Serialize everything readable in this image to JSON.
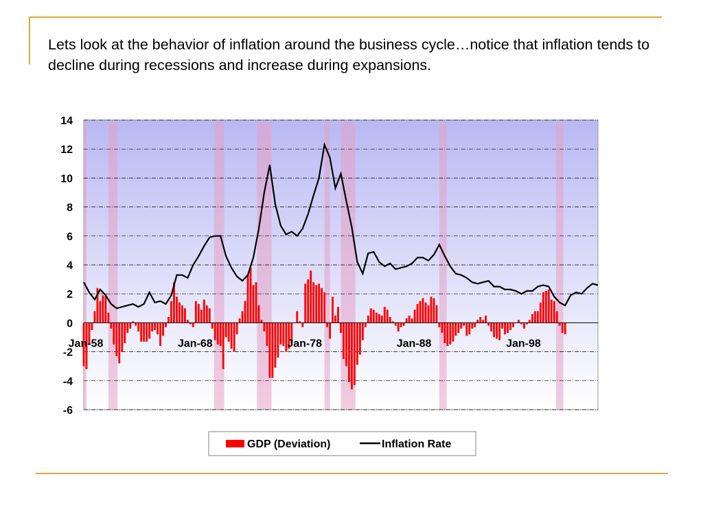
{
  "slide": {
    "body_text": "Lets look at the behavior of inflation around the business cycle…notice that inflation tends to decline during recessions and increase during expansions."
  },
  "colors": {
    "rule": "#e0a832",
    "recession_band": "#e6a0c4",
    "gdp_bar": "#ff0000",
    "inflation_line": "#000000",
    "plot_bg_top": "#b9b9f3",
    "plot_bg_bottom": "#ffffff"
  },
  "chart_data": {
    "type": "bar",
    "ylim": [
      -6,
      14
    ],
    "y_ticks": [
      "14",
      "12",
      "10",
      "8",
      "6",
      "4",
      "2",
      "0",
      "-2",
      "-4",
      "-6"
    ],
    "x_range": [
      "Jan-58",
      "Jan-02"
    ],
    "x_tick_labels": [
      "Jan-58",
      "Jan-68",
      "Jan-78",
      "Jan-88",
      "Jan-98"
    ],
    "grid": "horizontal dash-dot",
    "legend_position": "bottom",
    "legend": [
      "GDP (Deviation)",
      "Inflation Rate"
    ],
    "recessions": [
      [
        "Aug-57",
        "Apr-58"
      ],
      [
        "Apr-60",
        "Feb-61"
      ],
      [
        "Dec-69",
        "Nov-70"
      ],
      [
        "Nov-73",
        "Mar-75"
      ],
      [
        "Jan-80",
        "Jul-80"
      ],
      [
        "Jul-81",
        "Nov-82"
      ],
      [
        "Jul-90",
        "Mar-91"
      ],
      [
        "Mar-01",
        "Nov-01"
      ]
    ],
    "series": [
      {
        "name": "GDP (Deviation)",
        "type": "bar",
        "points": [
          [
            "Jan-58",
            -3.0
          ],
          [
            "Apr-58",
            -3.2
          ],
          [
            "Jul-58",
            -1.5
          ],
          [
            "Oct-58",
            -0.5
          ],
          [
            "Jan-59",
            0.8
          ],
          [
            "Apr-59",
            2.4
          ],
          [
            "Jul-59",
            1.5
          ],
          [
            "Oct-59",
            1.9
          ],
          [
            "Jan-60",
            2.0
          ],
          [
            "Apr-60",
            0.7
          ],
          [
            "Jul-60",
            -0.4
          ],
          [
            "Oct-60",
            -1.5
          ],
          [
            "Jan-61",
            -2.3
          ],
          [
            "Apr-61",
            -2.8
          ],
          [
            "Jul-61",
            -2.0
          ],
          [
            "Oct-61",
            -1.4
          ],
          [
            "Jan-62",
            -0.7
          ],
          [
            "Apr-62",
            -0.4
          ],
          [
            "Jul-62",
            0.1
          ],
          [
            "Oct-62",
            -0.2
          ],
          [
            "Jan-63",
            -0.6
          ],
          [
            "Apr-63",
            -1.3
          ],
          [
            "Jul-63",
            -1.3
          ],
          [
            "Oct-63",
            -1.3
          ],
          [
            "Jan-64",
            -1.1
          ],
          [
            "Apr-64",
            -0.6
          ],
          [
            "Jul-64",
            -0.5
          ],
          [
            "Oct-64",
            -0.8
          ],
          [
            "Jan-65",
            -1.6
          ],
          [
            "Apr-65",
            -0.9
          ],
          [
            "Jul-65",
            -0.3
          ],
          [
            "Oct-65",
            0.4
          ],
          [
            "Jan-66",
            1.5
          ],
          [
            "Apr-66",
            2.8
          ],
          [
            "Jul-66",
            1.8
          ],
          [
            "Oct-66",
            1.4
          ],
          [
            "Jan-67",
            1.2
          ],
          [
            "Apr-67",
            1.0
          ],
          [
            "Jul-67",
            0.2
          ],
          [
            "Oct-67",
            -0.1
          ],
          [
            "Jan-68",
            -0.3
          ],
          [
            "Apr-68",
            1.5
          ],
          [
            "Jul-68",
            1.3
          ],
          [
            "Oct-68",
            0.9
          ],
          [
            "Jan-69",
            1.6
          ],
          [
            "Apr-69",
            1.2
          ],
          [
            "Jul-69",
            1.0
          ],
          [
            "Oct-69",
            -0.4
          ],
          [
            "Jan-70",
            -1.2
          ],
          [
            "Apr-70",
            -1.5
          ],
          [
            "Jul-70",
            -1.6
          ],
          [
            "Oct-70",
            -3.2
          ],
          [
            "Jan-71",
            -1.0
          ],
          [
            "Apr-71",
            -1.3
          ],
          [
            "Jul-71",
            -1.8
          ],
          [
            "Oct-71",
            -2.0
          ],
          [
            "Jan-72",
            -0.8
          ],
          [
            "Apr-72",
            0.3
          ],
          [
            "Jul-72",
            0.8
          ],
          [
            "Oct-72",
            1.5
          ],
          [
            "Jan-73",
            3.3
          ],
          [
            "Apr-73",
            3.8
          ],
          [
            "Jul-73",
            2.6
          ],
          [
            "Oct-73",
            2.8
          ],
          [
            "Jan-74",
            1.2
          ],
          [
            "Apr-74",
            0.2
          ],
          [
            "Jul-74",
            -0.6
          ],
          [
            "Oct-74",
            -1.6
          ],
          [
            "Jan-75",
            -3.8
          ],
          [
            "Apr-75",
            -3.8
          ],
          [
            "Jul-75",
            -3.1
          ],
          [
            "Oct-75",
            -2.4
          ],
          [
            "Jan-76",
            -1.5
          ],
          [
            "Apr-76",
            -1.6
          ],
          [
            "Jul-76",
            -2.0
          ],
          [
            "Oct-76",
            -1.8
          ],
          [
            "Jan-77",
            -1.4
          ],
          [
            "Apr-77",
            0.0
          ],
          [
            "Jul-77",
            0.8
          ],
          [
            "Oct-77",
            0.1
          ],
          [
            "Jan-78",
            -0.3
          ],
          [
            "Apr-78",
            2.7
          ],
          [
            "Jul-78",
            3.0
          ],
          [
            "Oct-78",
            3.6
          ],
          [
            "Jan-79",
            2.8
          ],
          [
            "Apr-79",
            2.6
          ],
          [
            "Jul-79",
            2.7
          ],
          [
            "Oct-79",
            2.4
          ],
          [
            "Jan-80",
            2.1
          ],
          [
            "Apr-80",
            -0.3
          ],
          [
            "Jul-80",
            -1.1
          ],
          [
            "Oct-80",
            1.8
          ],
          [
            "Jan-81",
            0.5
          ],
          [
            "Apr-81",
            1.1
          ],
          [
            "Jul-81",
            -0.7
          ],
          [
            "Oct-81",
            -2.5
          ],
          [
            "Jan-82",
            -3.0
          ],
          [
            "Apr-82",
            -4.1
          ],
          [
            "Jul-82",
            -4.6
          ],
          [
            "Oct-82",
            -4.3
          ],
          [
            "Jan-83",
            -2.9
          ],
          [
            "Apr-83",
            -2.2
          ],
          [
            "Jul-83",
            -1.2
          ],
          [
            "Oct-83",
            -0.3
          ],
          [
            "Jan-84",
            0.5
          ],
          [
            "Apr-84",
            1.0
          ],
          [
            "Jul-84",
            0.9
          ],
          [
            "Oct-84",
            0.7
          ],
          [
            "Jan-85",
            0.6
          ],
          [
            "Apr-85",
            0.5
          ],
          [
            "Jul-85",
            1.1
          ],
          [
            "Oct-85",
            0.9
          ],
          [
            "Jan-86",
            0.4
          ],
          [
            "Apr-86",
            0.1
          ],
          [
            "Jul-86",
            -0.2
          ],
          [
            "Oct-86",
            -0.6
          ],
          [
            "Jan-87",
            -0.3
          ],
          [
            "Apr-87",
            -0.2
          ],
          [
            "Jul-87",
            0.3
          ],
          [
            "Oct-87",
            0.5
          ],
          [
            "Jan-88",
            0.3
          ],
          [
            "Apr-88",
            0.9
          ],
          [
            "Jul-88",
            1.3
          ],
          [
            "Oct-88",
            1.5
          ],
          [
            "Jan-89",
            1.7
          ],
          [
            "Apr-89",
            1.4
          ],
          [
            "Jul-89",
            1.2
          ],
          [
            "Oct-89",
            1.8
          ],
          [
            "Jan-90",
            1.7
          ],
          [
            "Apr-90",
            1.2
          ],
          [
            "Jul-90",
            -0.3
          ],
          [
            "Oct-90",
            -0.7
          ],
          [
            "Jan-91",
            -1.4
          ],
          [
            "Apr-91",
            -1.6
          ],
          [
            "Jul-91",
            -1.5
          ],
          [
            "Oct-91",
            -1.3
          ],
          [
            "Jan-92",
            -0.9
          ],
          [
            "Apr-92",
            -0.7
          ],
          [
            "Jul-92",
            -0.4
          ],
          [
            "Oct-92",
            -0.2
          ],
          [
            "Jan-93",
            -0.9
          ],
          [
            "Apr-93",
            -0.8
          ],
          [
            "Jul-93",
            -0.4
          ],
          [
            "Oct-93",
            -0.3
          ],
          [
            "Jan-94",
            0.2
          ],
          [
            "Apr-94",
            0.4
          ],
          [
            "Jul-94",
            0.2
          ],
          [
            "Oct-94",
            0.5
          ],
          [
            "Jan-95",
            -0.2
          ],
          [
            "Apr-95",
            -0.6
          ],
          [
            "Jul-95",
            -1.0
          ],
          [
            "Oct-95",
            -1.1
          ],
          [
            "Jan-96",
            -1.2
          ],
          [
            "Apr-96",
            -0.4
          ],
          [
            "Jul-96",
            -0.8
          ],
          [
            "Oct-96",
            -0.7
          ],
          [
            "Jan-97",
            -0.5
          ],
          [
            "Apr-97",
            -0.3
          ],
          [
            "Jul-97",
            0.0
          ],
          [
            "Oct-97",
            0.2
          ],
          [
            "Jan-98",
            -0.1
          ],
          [
            "Apr-98",
            -0.4
          ],
          [
            "Jul-98",
            -0.1
          ],
          [
            "Oct-98",
            0.2
          ],
          [
            "Jan-99",
            0.6
          ],
          [
            "Apr-99",
            0.8
          ],
          [
            "Jul-99",
            0.8
          ],
          [
            "Oct-99",
            1.4
          ],
          [
            "Jan-00",
            2.1
          ],
          [
            "Apr-00",
            2.2
          ],
          [
            "Jul-00",
            2.3
          ],
          [
            "Oct-00",
            1.6
          ],
          [
            "Jan-01",
            1.5
          ],
          [
            "Apr-01",
            0.8
          ],
          [
            "Jul-01",
            -0.2
          ],
          [
            "Oct-01",
            -0.7
          ],
          [
            "Jan-02",
            -0.8
          ]
        ]
      },
      {
        "name": "Inflation Rate",
        "type": "line",
        "points": [
          [
            "Jan-58",
            2.8
          ],
          [
            "Jul-58",
            2.1
          ],
          [
            "Jan-59",
            1.6
          ],
          [
            "Jul-59",
            2.3
          ],
          [
            "Jan-60",
            1.9
          ],
          [
            "Jul-60",
            1.3
          ],
          [
            "Jan-61",
            1.0
          ],
          [
            "Jul-61",
            1.1
          ],
          [
            "Jan-62",
            1.2
          ],
          [
            "Jul-62",
            1.3
          ],
          [
            "Jan-63",
            1.1
          ],
          [
            "Jul-63",
            1.3
          ],
          [
            "Jan-64",
            2.1
          ],
          [
            "Jul-64",
            1.4
          ],
          [
            "Jan-65",
            1.5
          ],
          [
            "Jul-65",
            1.3
          ],
          [
            "Jan-66",
            1.9
          ],
          [
            "Jul-66",
            3.3
          ],
          [
            "Jan-67",
            3.3
          ],
          [
            "Jul-67",
            3.1
          ],
          [
            "Jan-68",
            4.0
          ],
          [
            "Jul-68",
            4.6
          ],
          [
            "Jan-69",
            5.3
          ],
          [
            "Jul-69",
            5.9
          ],
          [
            "Jan-70",
            6.0
          ],
          [
            "Jul-70",
            6.0
          ],
          [
            "Jan-71",
            4.6
          ],
          [
            "Jul-71",
            3.8
          ],
          [
            "Jan-72",
            3.2
          ],
          [
            "Jul-72",
            2.9
          ],
          [
            "Jan-73",
            3.3
          ],
          [
            "Jul-73",
            4.5
          ],
          [
            "Jan-74",
            6.5
          ],
          [
            "Jul-74",
            9.0
          ],
          [
            "Jan-75",
            10.9
          ],
          [
            "Jul-75",
            8.2
          ],
          [
            "Jan-76",
            6.7
          ],
          [
            "Jul-76",
            6.1
          ],
          [
            "Jan-77",
            6.3
          ],
          [
            "Jul-77",
            6.0
          ],
          [
            "Jan-78",
            6.5
          ],
          [
            "Jul-78",
            7.5
          ],
          [
            "Jan-79",
            8.8
          ],
          [
            "Jul-79",
            10.0
          ],
          [
            "Jan-80",
            12.3
          ],
          [
            "Jul-80",
            11.4
          ],
          [
            "Jan-81",
            9.3
          ],
          [
            "Jul-81",
            10.3
          ],
          [
            "Jan-82",
            8.4
          ],
          [
            "Jul-82",
            6.6
          ],
          [
            "Jan-83",
            4.2
          ],
          [
            "Jul-83",
            3.4
          ],
          [
            "Jan-84",
            4.8
          ],
          [
            "Jul-84",
            4.9
          ],
          [
            "Jan-85",
            4.2
          ],
          [
            "Jul-85",
            3.9
          ],
          [
            "Jan-86",
            4.1
          ],
          [
            "Jul-86",
            3.7
          ],
          [
            "Jan-87",
            3.8
          ],
          [
            "Jul-87",
            3.9
          ],
          [
            "Jan-88",
            4.1
          ],
          [
            "Jul-88",
            4.5
          ],
          [
            "Jan-89",
            4.5
          ],
          [
            "Jul-89",
            4.3
          ],
          [
            "Jan-90",
            4.7
          ],
          [
            "Jul-90",
            5.4
          ],
          [
            "Jan-91",
            4.6
          ],
          [
            "Jul-91",
            3.9
          ],
          [
            "Jan-92",
            3.4
          ],
          [
            "Jul-92",
            3.3
          ],
          [
            "Jan-93",
            3.1
          ],
          [
            "Jul-93",
            2.8
          ],
          [
            "Jan-94",
            2.7
          ],
          [
            "Jul-94",
            2.8
          ],
          [
            "Jan-95",
            2.9
          ],
          [
            "Jul-95",
            2.5
          ],
          [
            "Jan-96",
            2.5
          ],
          [
            "Jul-96",
            2.3
          ],
          [
            "Jan-97",
            2.3
          ],
          [
            "Jul-97",
            2.2
          ],
          [
            "Jan-98",
            2.0
          ],
          [
            "Jul-98",
            2.2
          ],
          [
            "Jan-99",
            2.2
          ],
          [
            "Jul-99",
            2.5
          ],
          [
            "Jan-00",
            2.6
          ],
          [
            "Jul-00",
            2.5
          ],
          [
            "Jan-01",
            1.8
          ],
          [
            "Jul-01",
            1.4
          ],
          [
            "Jan-02",
            1.2
          ],
          [
            "Jul-02",
            1.9
          ],
          [
            "Jan-03",
            2.1
          ],
          [
            "Jul-03",
            2.0
          ],
          [
            "Jan-04",
            2.4
          ],
          [
            "Jul-04",
            2.7
          ],
          [
            "Jan-05",
            2.6
          ]
        ]
      }
    ]
  }
}
